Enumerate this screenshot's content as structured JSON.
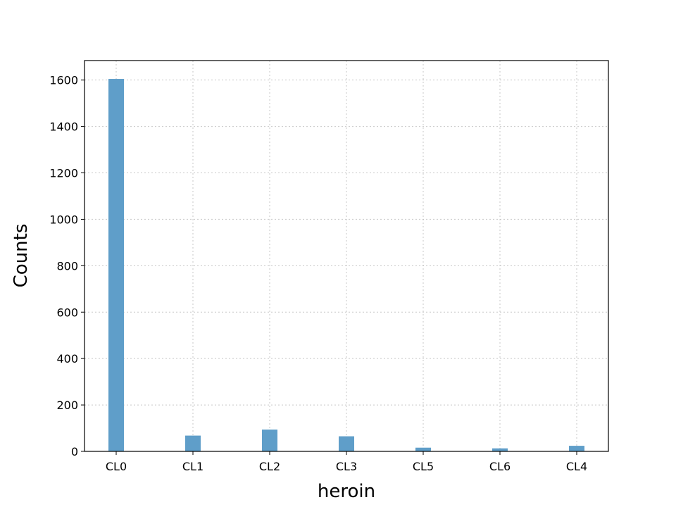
{
  "chart_data": {
    "type": "bar",
    "title": "",
    "xlabel": "heroin",
    "ylabel": "Counts",
    "categories": [
      "CL0",
      "CL1",
      "CL2",
      "CL3",
      "CL5",
      "CL6",
      "CL4"
    ],
    "values": [
      1605,
      68,
      94,
      65,
      16,
      13,
      24
    ],
    "ylim": [
      0,
      1684
    ],
    "yticks": [
      0,
      200,
      400,
      600,
      800,
      1000,
      1200,
      1400,
      1600
    ],
    "grid": true,
    "bar_color": "#5f9ec9"
  }
}
